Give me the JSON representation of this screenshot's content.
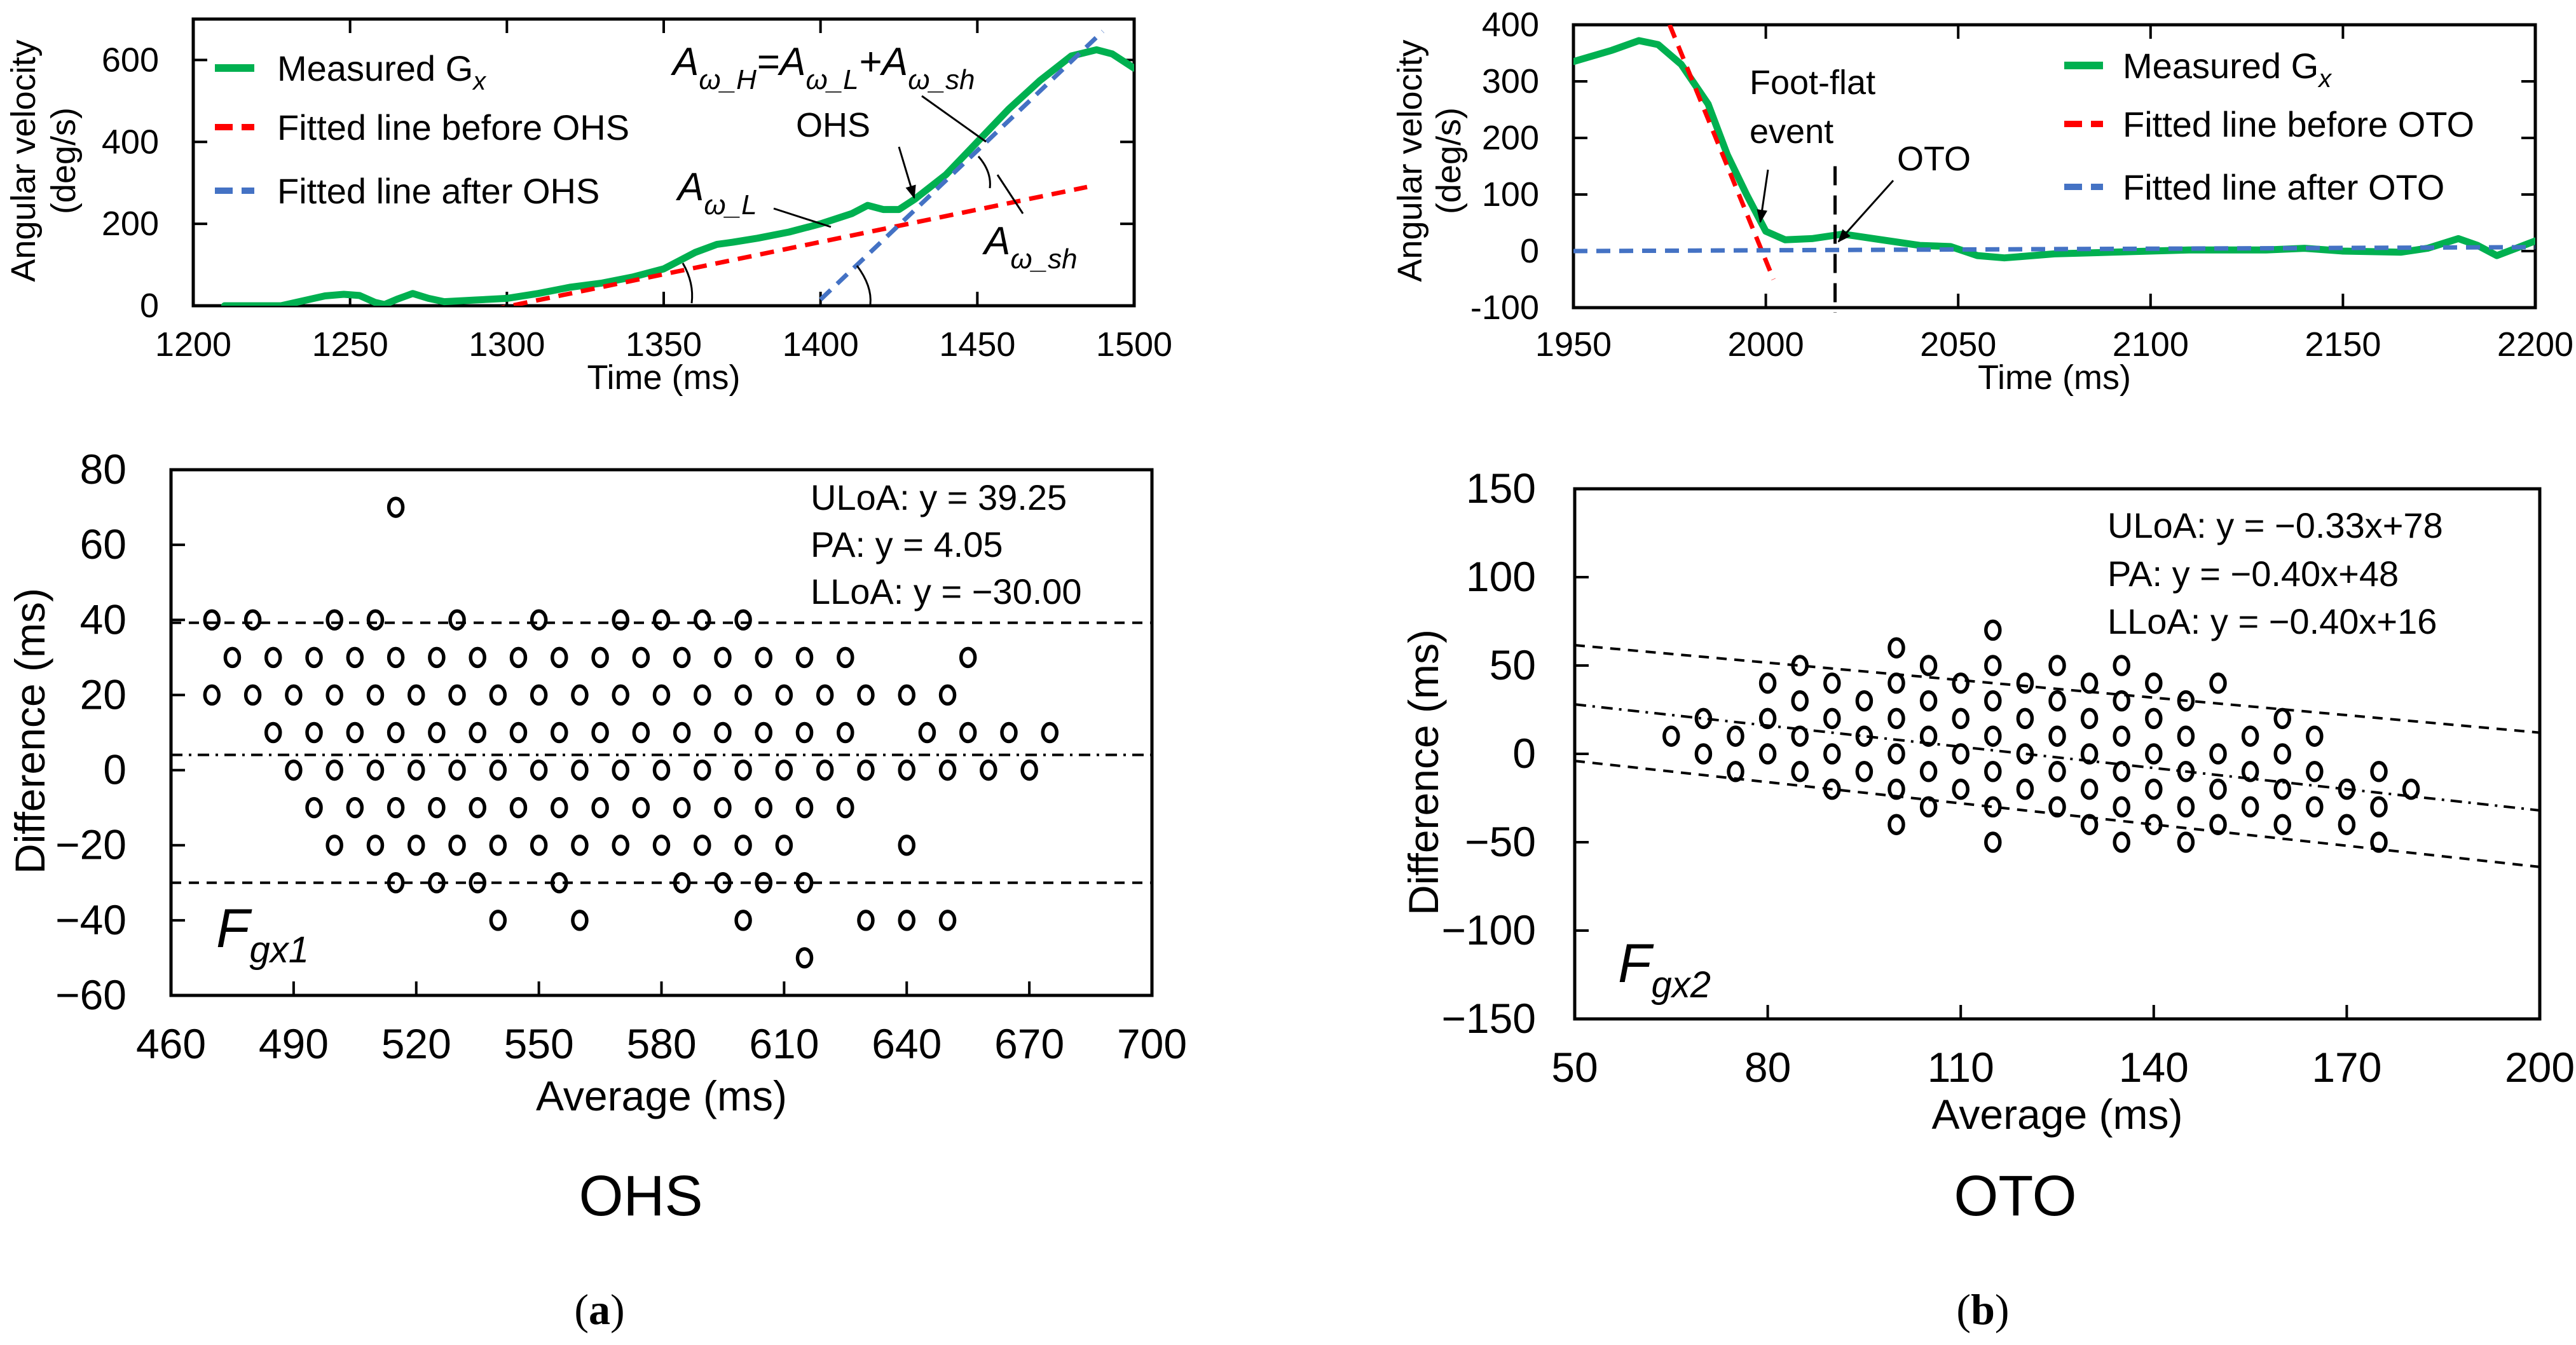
{
  "figure": {
    "caption_a_letter": "a",
    "caption_b_letter": "b",
    "paren_open": "(",
    "paren_close": ")",
    "panel_a_title": "OHS",
    "panel_b_title": "OTO"
  },
  "colors": {
    "measured": "#00b050",
    "before": "#ff0000",
    "after": "#4472c4",
    "marker": "#000000"
  },
  "chart_data": [
    {
      "type": "line",
      "xlabel": "Time (ms)",
      "ylabel": [
        "Angular velocity",
        "(deg/s)"
      ],
      "xlim": [
        1200,
        1500
      ],
      "ylim": [
        0,
        700
      ],
      "xticks": [
        1200,
        1250,
        1300,
        1350,
        1400,
        1450,
        1500
      ],
      "yticks": [
        0,
        200,
        400,
        600
      ],
      "legend_position": "top-left",
      "legend": [
        {
          "label": "Measured G",
          "sub": "x"
        },
        {
          "label": "Fitted line before OHS"
        },
        {
          "label": "Fitted line after OHS"
        }
      ],
      "annotations": {
        "formula": [
          {
            "t": "A",
            "s": "ω_H"
          },
          {
            "t": "=A",
            "s": "ω_L"
          },
          {
            "t": "+A",
            "s": "ω_sh"
          }
        ],
        "event": "OHS",
        "a_low": {
          "t": "A",
          "s": "ω_L"
        },
        "a_sh": {
          "t": "A",
          "s": "ω_sh"
        }
      },
      "series": [
        {
          "name": "Measured Gx",
          "style": "solid",
          "x": [
            1210,
            1228,
            1235,
            1242,
            1248,
            1253,
            1258,
            1261,
            1265,
            1270,
            1275,
            1280,
            1290,
            1300,
            1310,
            1320,
            1330,
            1340,
            1350,
            1355,
            1360,
            1367,
            1372,
            1380,
            1390,
            1400,
            1410,
            1415,
            1420,
            1425,
            1430,
            1440,
            1450,
            1460,
            1470,
            1480,
            1488,
            1493,
            1500
          ],
          "y": [
            0,
            0,
            12,
            24,
            28,
            25,
            8,
            3,
            16,
            30,
            18,
            10,
            14,
            18,
            30,
            45,
            55,
            70,
            90,
            110,
            130,
            150,
            155,
            165,
            180,
            200,
            225,
            245,
            235,
            235,
            260,
            320,
            400,
            480,
            550,
            610,
            625,
            615,
            580
          ]
        },
        {
          "name": "Fitted line before OHS",
          "style": "dash",
          "x": [
            1295,
            1485
          ],
          "y": [
            -10,
            290
          ]
        },
        {
          "name": "Fitted line after OHS",
          "style": "dash",
          "x": [
            1400,
            1490
          ],
          "y": [
            15,
            670
          ]
        }
      ]
    },
    {
      "type": "line",
      "xlabel": "Time (ms)",
      "ylabel": [
        "Angular velocity",
        "(deg/s)"
      ],
      "xlim": [
        1950,
        2200
      ],
      "ylim": [
        -100,
        400
      ],
      "xticks": [
        1950,
        2000,
        2050,
        2100,
        2150,
        2200
      ],
      "yticks": [
        -100,
        0,
        100,
        200,
        300,
        400
      ],
      "legend_position": "top-right",
      "legend": [
        {
          "label": "Measured G",
          "sub": "x"
        },
        {
          "label": "Fitted line before OTO"
        },
        {
          "label": "Fitted line after OTO"
        }
      ],
      "annotations": {
        "foot_flat_1": "Foot-flat",
        "foot_flat_2": "event",
        "event": "OTO",
        "event_time": 2018
      },
      "series": [
        {
          "name": "Measured Gx",
          "style": "solid",
          "x": [
            1950,
            1960,
            1967,
            1972,
            1978,
            1985,
            1990,
            1995,
            2000,
            2005,
            2012,
            2020,
            2030,
            2040,
            2048,
            2055,
            2062,
            2075,
            2090,
            2110,
            2130,
            2140,
            2150,
            2165,
            2172,
            2180,
            2185,
            2190,
            2195,
            2200
          ],
          "y": [
            335,
            355,
            372,
            365,
            330,
            260,
            170,
            100,
            35,
            20,
            22,
            30,
            20,
            10,
            8,
            -8,
            -12,
            -5,
            -2,
            2,
            2,
            5,
            0,
            -2,
            5,
            22,
            10,
            -8,
            5,
            18
          ]
        },
        {
          "name": "Fitted line before OTO",
          "style": "dash",
          "x": [
            1975,
            2002
          ],
          "y": [
            400,
            -50
          ]
        },
        {
          "name": "Fitted line after OTO",
          "style": "dash",
          "x": [
            1950,
            2200
          ],
          "y": [
            0,
            7
          ]
        }
      ]
    },
    {
      "type": "scatter",
      "xlabel": "Average (ms)",
      "ylabel": "Difference (ms)",
      "xlim": [
        460,
        700
      ],
      "ylim": [
        -60,
        80
      ],
      "xticks": [
        460,
        490,
        520,
        550,
        580,
        610,
        640,
        670,
        700
      ],
      "yticks": [
        -60,
        -40,
        -20,
        0,
        20,
        40,
        60,
        80
      ],
      "label_main": "F",
      "label_sub": "gx1",
      "lines": [
        {
          "name": "ULoA",
          "text": "ULoA: y = 39.25",
          "slope": 0,
          "intercept": 39.25,
          "style": "dash"
        },
        {
          "name": "PA",
          "text": "PA: y = 4.05",
          "slope": 0,
          "intercept": 4.05,
          "style": "dashdot"
        },
        {
          "name": "LLoA",
          "text": "LLoA: y = −30.00",
          "slope": 0,
          "intercept": -30.0,
          "style": "dash"
        }
      ],
      "points": [
        [
          515,
          70
        ],
        [
          470,
          40
        ],
        [
          480,
          40
        ],
        [
          500,
          40
        ],
        [
          510,
          40
        ],
        [
          530,
          40
        ],
        [
          550,
          40
        ],
        [
          570,
          40
        ],
        [
          580,
          40
        ],
        [
          590,
          40
        ],
        [
          600,
          40
        ],
        [
          475,
          30
        ],
        [
          485,
          30
        ],
        [
          495,
          30
        ],
        [
          505,
          30
        ],
        [
          515,
          30
        ],
        [
          525,
          30
        ],
        [
          535,
          30
        ],
        [
          545,
          30
        ],
        [
          555,
          30
        ],
        [
          565,
          30
        ],
        [
          575,
          30
        ],
        [
          585,
          30
        ],
        [
          595,
          30
        ],
        [
          605,
          30
        ],
        [
          615,
          30
        ],
        [
          625,
          30
        ],
        [
          655,
          30
        ],
        [
          470,
          20
        ],
        [
          480,
          20
        ],
        [
          490,
          20
        ],
        [
          500,
          20
        ],
        [
          510,
          20
        ],
        [
          520,
          20
        ],
        [
          530,
          20
        ],
        [
          540,
          20
        ],
        [
          550,
          20
        ],
        [
          560,
          20
        ],
        [
          570,
          20
        ],
        [
          580,
          20
        ],
        [
          590,
          20
        ],
        [
          600,
          20
        ],
        [
          610,
          20
        ],
        [
          620,
          20
        ],
        [
          630,
          20
        ],
        [
          640,
          20
        ],
        [
          650,
          20
        ],
        [
          485,
          10
        ],
        [
          495,
          10
        ],
        [
          505,
          10
        ],
        [
          515,
          10
        ],
        [
          525,
          10
        ],
        [
          535,
          10
        ],
        [
          545,
          10
        ],
        [
          555,
          10
        ],
        [
          565,
          10
        ],
        [
          575,
          10
        ],
        [
          585,
          10
        ],
        [
          595,
          10
        ],
        [
          605,
          10
        ],
        [
          615,
          10
        ],
        [
          625,
          10
        ],
        [
          645,
          10
        ],
        [
          655,
          10
        ],
        [
          665,
          10
        ],
        [
          675,
          10
        ],
        [
          490,
          0
        ],
        [
          500,
          0
        ],
        [
          510,
          0
        ],
        [
          520,
          0
        ],
        [
          530,
          0
        ],
        [
          540,
          0
        ],
        [
          550,
          0
        ],
        [
          560,
          0
        ],
        [
          570,
          0
        ],
        [
          580,
          0
        ],
        [
          590,
          0
        ],
        [
          600,
          0
        ],
        [
          610,
          0
        ],
        [
          620,
          0
        ],
        [
          630,
          0
        ],
        [
          640,
          0
        ],
        [
          650,
          0
        ],
        [
          660,
          0
        ],
        [
          670,
          0
        ],
        [
          495,
          -10
        ],
        [
          505,
          -10
        ],
        [
          515,
          -10
        ],
        [
          525,
          -10
        ],
        [
          535,
          -10
        ],
        [
          545,
          -10
        ],
        [
          555,
          -10
        ],
        [
          565,
          -10
        ],
        [
          575,
          -10
        ],
        [
          585,
          -10
        ],
        [
          595,
          -10
        ],
        [
          605,
          -10
        ],
        [
          615,
          -10
        ],
        [
          625,
          -10
        ],
        [
          500,
          -20
        ],
        [
          510,
          -20
        ],
        [
          520,
          -20
        ],
        [
          530,
          -20
        ],
        [
          540,
          -20
        ],
        [
          550,
          -20
        ],
        [
          560,
          -20
        ],
        [
          570,
          -20
        ],
        [
          580,
          -20
        ],
        [
          590,
          -20
        ],
        [
          600,
          -20
        ],
        [
          610,
          -20
        ],
        [
          640,
          -20
        ],
        [
          515,
          -30
        ],
        [
          525,
          -30
        ],
        [
          535,
          -30
        ],
        [
          555,
          -30
        ],
        [
          585,
          -30
        ],
        [
          595,
          -30
        ],
        [
          605,
          -30
        ],
        [
          615,
          -30
        ],
        [
          540,
          -40
        ],
        [
          560,
          -40
        ],
        [
          600,
          -40
        ],
        [
          630,
          -40
        ],
        [
          640,
          -40
        ],
        [
          650,
          -40
        ],
        [
          615,
          -50
        ]
      ]
    },
    {
      "type": "scatter",
      "xlabel": "Average (ms)",
      "ylabel": "Difference (ms)",
      "xlim": [
        50,
        200
      ],
      "ylim": [
        -150,
        150
      ],
      "xticks": [
        50,
        80,
        110,
        140,
        170,
        200
      ],
      "yticks": [
        -150,
        -100,
        -50,
        0,
        50,
        100,
        150
      ],
      "label_main": "F",
      "label_sub": "gx2",
      "lines": [
        {
          "name": "ULoA",
          "text": "ULoA: y = −0.33x+78",
          "slope": -0.33,
          "intercept": 78,
          "style": "dash"
        },
        {
          "name": "PA",
          "text": "PA: y = −0.40x+48",
          "slope": -0.4,
          "intercept": 48,
          "style": "dashdot"
        },
        {
          "name": "LLoA",
          "text": "LLoA: y = −0.40x+16",
          "slope": -0.4,
          "intercept": 16,
          "style": "dash"
        }
      ],
      "points": [
        [
          65,
          10
        ],
        [
          70,
          20
        ],
        [
          70,
          0
        ],
        [
          75,
          10
        ],
        [
          75,
          -10
        ],
        [
          80,
          40
        ],
        [
          80,
          20
        ],
        [
          80,
          0
        ],
        [
          85,
          50
        ],
        [
          85,
          30
        ],
        [
          85,
          10
        ],
        [
          85,
          -10
        ],
        [
          90,
          40
        ],
        [
          90,
          20
        ],
        [
          90,
          0
        ],
        [
          90,
          -20
        ],
        [
          95,
          30
        ],
        [
          95,
          10
        ],
        [
          95,
          -10
        ],
        [
          100,
          60
        ],
        [
          100,
          40
        ],
        [
          100,
          20
        ],
        [
          100,
          0
        ],
        [
          100,
          -20
        ],
        [
          100,
          -40
        ],
        [
          105,
          50
        ],
        [
          105,
          30
        ],
        [
          105,
          10
        ],
        [
          105,
          -10
        ],
        [
          105,
          -30
        ],
        [
          110,
          40
        ],
        [
          110,
          20
        ],
        [
          110,
          0
        ],
        [
          110,
          -20
        ],
        [
          115,
          70
        ],
        [
          115,
          50
        ],
        [
          115,
          30
        ],
        [
          115,
          10
        ],
        [
          115,
          -10
        ],
        [
          115,
          -30
        ],
        [
          115,
          -50
        ],
        [
          120,
          40
        ],
        [
          120,
          20
        ],
        [
          120,
          0
        ],
        [
          120,
          -20
        ],
        [
          125,
          50
        ],
        [
          125,
          30
        ],
        [
          125,
          10
        ],
        [
          125,
          -10
        ],
        [
          125,
          -30
        ],
        [
          130,
          40
        ],
        [
          130,
          20
        ],
        [
          130,
          0
        ],
        [
          130,
          -20
        ],
        [
          130,
          -40
        ],
        [
          135,
          50
        ],
        [
          135,
          30
        ],
        [
          135,
          10
        ],
        [
          135,
          -10
        ],
        [
          135,
          -30
        ],
        [
          135,
          -50
        ],
        [
          140,
          40
        ],
        [
          140,
          20
        ],
        [
          140,
          0
        ],
        [
          140,
          -20
        ],
        [
          140,
          -40
        ],
        [
          145,
          30
        ],
        [
          145,
          10
        ],
        [
          145,
          -10
        ],
        [
          145,
          -30
        ],
        [
          145,
          -50
        ],
        [
          150,
          40
        ],
        [
          150,
          0
        ],
        [
          150,
          -20
        ],
        [
          150,
          -40
        ],
        [
          155,
          10
        ],
        [
          155,
          -10
        ],
        [
          155,
          -30
        ],
        [
          160,
          20
        ],
        [
          160,
          0
        ],
        [
          160,
          -20
        ],
        [
          160,
          -40
        ],
        [
          165,
          10
        ],
        [
          165,
          -10
        ],
        [
          165,
          -30
        ],
        [
          170,
          -20
        ],
        [
          170,
          -40
        ],
        [
          175,
          -10
        ],
        [
          175,
          -30
        ],
        [
          175,
          -50
        ],
        [
          180,
          -20
        ]
      ]
    }
  ]
}
